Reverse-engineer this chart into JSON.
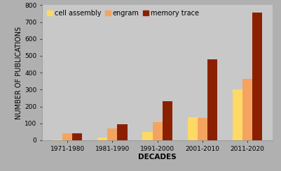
{
  "categories": [
    "1971-1980",
    "1981-1990",
    "1991-2000",
    "2001-2010",
    "2011-2020"
  ],
  "series": {
    "cell assembly": [
      5,
      15,
      50,
      135,
      300
    ],
    "engram": [
      40,
      70,
      105,
      130,
      365
    ],
    "memory trace": [
      40,
      95,
      230,
      480,
      755
    ]
  },
  "colors": {
    "cell assembly": "#FFD966",
    "engram": "#F4A460",
    "memory trace": "#8B2000"
  },
  "ylabel": "NUMBER OF PUBLICATIONS",
  "xlabel": "DECADES",
  "ylim": [
    0,
    800
  ],
  "yticks": [
    0,
    100,
    200,
    300,
    400,
    500,
    600,
    700,
    800
  ],
  "background_color": "#B0B0B0",
  "plot_background_color": "#C8C8C8",
  "bar_width": 0.22,
  "axis_label_fontsize": 7,
  "tick_fontsize": 6.5,
  "legend_fontsize": 7
}
